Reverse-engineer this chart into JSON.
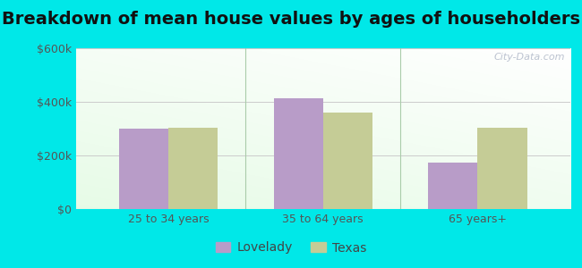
{
  "title": "Breakdown of mean house values by ages of householders",
  "categories": [
    "25 to 34 years",
    "35 to 64 years",
    "65 years+"
  ],
  "lovelady_values": [
    300000,
    415000,
    175000
  ],
  "texas_values": [
    305000,
    360000,
    305000
  ],
  "lovelady_color": "#b89cc8",
  "texas_color": "#c5cc96",
  "ylim": [
    0,
    600000
  ],
  "yticks": [
    0,
    200000,
    400000,
    600000
  ],
  "ytick_labels": [
    "$0",
    "$200k",
    "$400k",
    "$600k"
  ],
  "legend_labels": [
    "Lovelady",
    "Texas"
  ],
  "outer_bg": "#00e8e8",
  "title_fontsize": 14,
  "bar_width": 0.32,
  "watermark": "City-Data.com"
}
